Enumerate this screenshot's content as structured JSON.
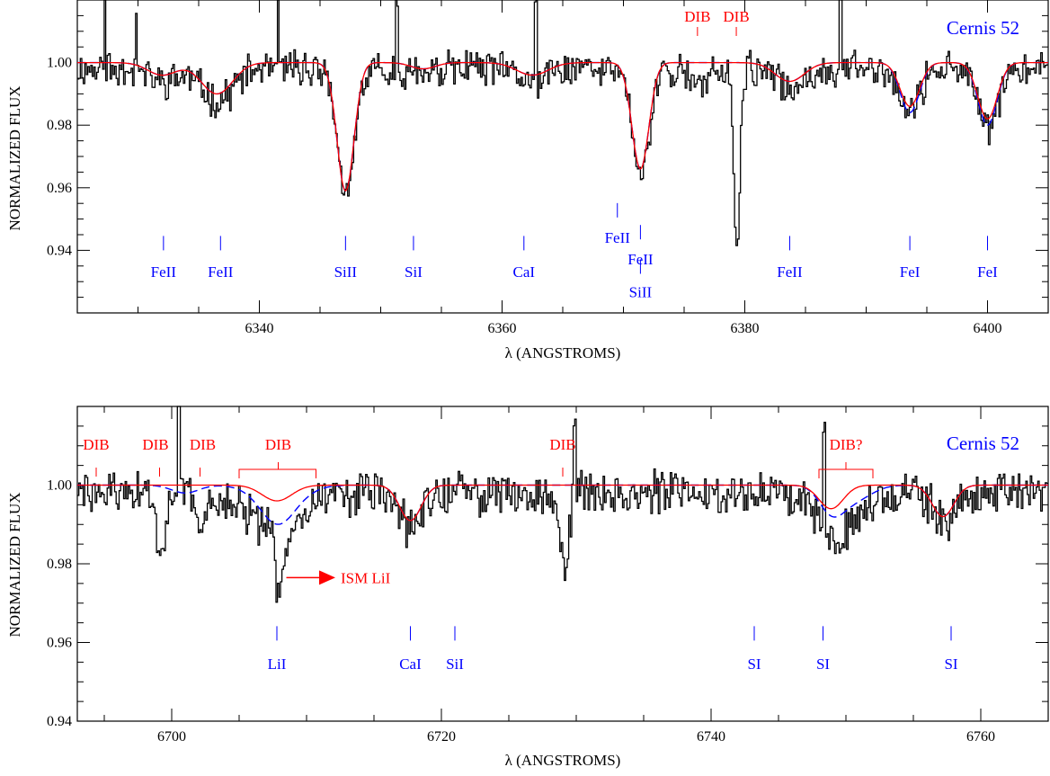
{
  "chart_data": [
    {
      "type": "line",
      "panel": "top",
      "ylabel": "NORMALIZED FLUX",
      "xlabel": "λ (ANGSTROMS)",
      "xlim": [
        6325,
        6405
      ],
      "ylim": [
        0.92,
        1.02
      ],
      "xticks": [
        6340,
        6360,
        6380,
        6400
      ],
      "yticks": [
        0.94,
        0.96,
        0.98,
        1.0
      ],
      "xtick_labels": [
        "6340",
        "6360",
        "6380",
        "6400"
      ],
      "ytick_labels": [
        "0.94",
        "0.96",
        "0.98",
        "1.00"
      ],
      "object_label": "Cernis 52",
      "colors": {
        "observed": "#000000",
        "model_red": "#ff0000",
        "model_blue": "#0000ff",
        "dib_label": "#ff0000",
        "line_label": "#0000ff"
      },
      "continuum_level": 1.0,
      "absorption_features": [
        {
          "x": 6332,
          "depth": 0.004,
          "width": 1.2
        },
        {
          "x": 6336.5,
          "depth": 0.01,
          "width": 1.3
        },
        {
          "x": 6347.1,
          "depth": 0.041,
          "width": 0.7
        },
        {
          "x": 6353.5,
          "depth": 0.002,
          "width": 1.0
        },
        {
          "x": 6362.5,
          "depth": 0.004,
          "width": 1.3
        },
        {
          "x": 6371.4,
          "depth": 0.034,
          "width": 0.7
        },
        {
          "x": 6383.7,
          "depth": 0.006,
          "width": 1.2
        },
        {
          "x": 6393.6,
          "depth": 0.014,
          "width": 0.8
        },
        {
          "x": 6400.0,
          "depth": 0.018,
          "width": 0.8
        }
      ],
      "observed_extra_features": [
        {
          "x": 6379.3,
          "depth": 0.058,
          "width": 0.25
        },
        {
          "x": 6376.1,
          "depth": 0.006,
          "width": 0.6
        }
      ],
      "emission_spikes": [
        6327.2,
        6329.8,
        6341.5,
        6351.3,
        6362.7,
        6387.8
      ],
      "line_ids": [
        {
          "label": "FeII",
          "x": 6332.1,
          "tick_y": 0.94,
          "label_y": 0.9355
        },
        {
          "label": "FeII",
          "x": 6336.8,
          "tick_y": 0.94,
          "label_y": 0.9355
        },
        {
          "label": "SiII",
          "x": 6347.1,
          "tick_y": 0.94,
          "label_y": 0.9355
        },
        {
          "label": "SiI",
          "x": 6352.7,
          "tick_y": 0.94,
          "label_y": 0.9355
        },
        {
          "label": "CaI",
          "x": 6361.8,
          "tick_y": 0.94,
          "label_y": 0.9355
        },
        {
          "label": "FeII",
          "x": 6369.5,
          "tick_y": 0.9505,
          "label_y": 0.9465
        },
        {
          "label": "FeII",
          "x": 6371.4,
          "tick_y": 0.9435,
          "label_y": 0.9395
        },
        {
          "label": "SiII",
          "x": 6371.4,
          "tick_y": 0.9325,
          "label_y": 0.929
        },
        {
          "label": "FeII",
          "x": 6383.7,
          "tick_y": 0.94,
          "label_y": 0.9355
        },
        {
          "label": "FeI",
          "x": 6393.6,
          "tick_y": 0.94,
          "label_y": 0.9355
        },
        {
          "label": "FeI",
          "x": 6400.0,
          "tick_y": 0.94,
          "label_y": 0.9355
        }
      ],
      "dib_labels": [
        {
          "label": "DIB",
          "x": 6376.1
        },
        {
          "label": "DIB",
          "x": 6379.3
        }
      ]
    },
    {
      "type": "line",
      "panel": "bottom",
      "ylabel": "NORMALIZED FLUX",
      "xlabel": "λ (ANGSTROMS)",
      "xlim": [
        6693,
        6765
      ],
      "ylim": [
        0.94,
        1.02
      ],
      "xticks": [
        6700,
        6720,
        6740,
        6760
      ],
      "yticks": [
        0.94,
        0.96,
        0.98,
        1.0
      ],
      "xtick_labels": [
        "6700",
        "6720",
        "6740",
        "6760"
      ],
      "ytick_labels": [
        "0.94",
        "0.96",
        "0.98",
        "1.00"
      ],
      "object_label": "Cernis 52",
      "colors": {
        "observed": "#000000",
        "model_red": "#ff0000",
        "model_blue": "#0000ff",
        "dib_label": "#ff0000",
        "line_label": "#0000ff"
      },
      "continuum_level": 1.0,
      "absorption_features": [
        {
          "x": 6707.8,
          "depth": 0.004,
          "width": 1.1
        },
        {
          "x": 6717.7,
          "depth": 0.009,
          "width": 0.8
        },
        {
          "x": 6748.9,
          "depth": 0.006,
          "width": 0.9
        },
        {
          "x": 6757.2,
          "depth": 0.008,
          "width": 0.8
        }
      ],
      "blue_model_extra_features": [
        {
          "x": 6708.0,
          "depth": 0.006,
          "width": 1.6
        },
        {
          "x": 6701.0,
          "depth": 0.002,
          "width": 1.0
        },
        {
          "x": 6750.5,
          "depth": 0.004,
          "width": 1.3
        }
      ],
      "observed_extra_features": [
        {
          "x": 6699.1,
          "depth": 0.016,
          "width": 0.3
        },
        {
          "x": 6702.1,
          "depth": 0.011,
          "width": 0.3
        },
        {
          "x": 6708.0,
          "depth": 0.018,
          "width": 0.3
        },
        {
          "x": 6707.0,
          "depth": 0.006,
          "width": 2.2
        },
        {
          "x": 6729.0,
          "depth": 0.018,
          "width": 0.35
        },
        {
          "x": 6750.0,
          "depth": 0.006,
          "width": 1.5
        }
      ],
      "emission_spikes": [
        6700.5,
        6729.8,
        6748.3
      ],
      "line_ids": [
        {
          "label": "LiI",
          "x": 6707.8,
          "tick_y": 0.9605,
          "label_y": 0.9565
        },
        {
          "label": "CaI",
          "x": 6717.7,
          "tick_y": 0.9605,
          "label_y": 0.9565
        },
        {
          "label": "SiI",
          "x": 6721.0,
          "tick_y": 0.9605,
          "label_y": 0.9565
        },
        {
          "label": "SI",
          "x": 6743.2,
          "tick_y": 0.9605,
          "label_y": 0.9565
        },
        {
          "label": "SI",
          "x": 6748.3,
          "tick_y": 0.9605,
          "label_y": 0.9565
        },
        {
          "label": "SI",
          "x": 6757.8,
          "tick_y": 0.9605,
          "label_y": 0.9565
        }
      ],
      "dib_labels": [
        {
          "label": "DIB",
          "x": 6694.4,
          "tick_x": 6694.4
        },
        {
          "label": "DIB",
          "x": 6698.8,
          "tick_x": 6699.1
        },
        {
          "label": "DIB",
          "x": 6702.3,
          "tick_x": 6702.1
        },
        {
          "label": "DIB",
          "x": 6707.9,
          "bracket": [
            6705.0,
            6710.7
          ]
        },
        {
          "label": "DIB",
          "x": 6729.0,
          "tick_x": 6729.0
        },
        {
          "label": "DIB?",
          "x": 6750.0,
          "bracket": [
            6748.0,
            6752.0
          ]
        }
      ],
      "annotation": {
        "label": "ISM LiI",
        "arrow_from_x": 6708.5,
        "arrow_to_x": 6712.0,
        "y": 0.9765
      }
    }
  ]
}
